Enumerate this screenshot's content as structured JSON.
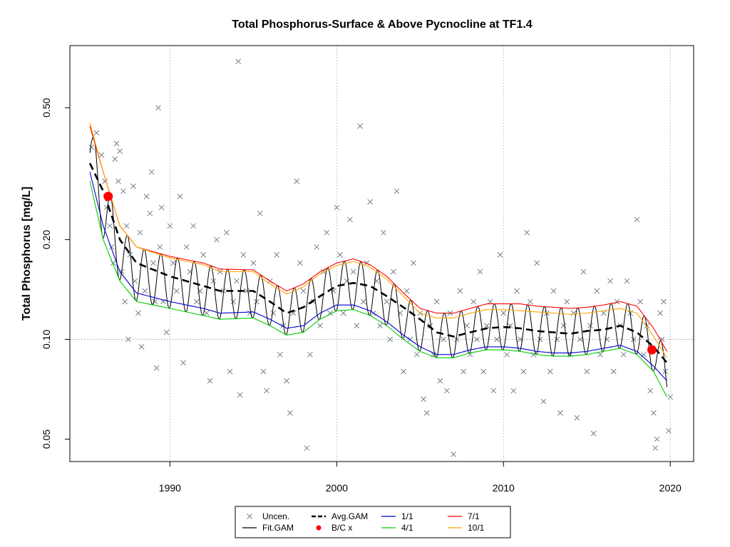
{
  "chart_data": {
    "type": "line",
    "title": "Total Phosphorus-Surface & Above Pycnocline at TF1.4",
    "xlabel": "",
    "ylabel": "Total Phosphorus [mg/L]",
    "y_scale": "log",
    "xlim": [
      1984,
      2021.4
    ],
    "ylim": [
      0.0428,
      0.77
    ],
    "x_ticks": [
      1990,
      2000,
      2010,
      2020
    ],
    "y_ticks": [
      0.05,
      0.1,
      0.2,
      0.5
    ],
    "y_tick_labels": [
      "0.05",
      "0.10",
      "0.20",
      "0.50"
    ],
    "reference_line_y": 0.1,
    "grid": true,
    "legend_position": "bottom",
    "legend": [
      {
        "label": "Uncen.",
        "symbol": "x",
        "color": "#708090"
      },
      {
        "label": "Avg.GAM",
        "symbol": "dashed-line",
        "color": "#000000"
      },
      {
        "label": "1/1",
        "symbol": "line",
        "color": "#0000cd"
      },
      {
        "label": "7/1",
        "symbol": "line",
        "color": "#ff0000"
      },
      {
        "label": "Fit.GAM",
        "symbol": "line",
        "color": "#000000"
      },
      {
        "label": "B/C x",
        "symbol": "dot",
        "color": "#ff0000"
      },
      {
        "label": "4/1",
        "symbol": "line",
        "color": "#00cd00"
      },
      {
        "label": "10/1",
        "symbol": "line",
        "color": "#ffa500"
      }
    ],
    "series": [
      {
        "name": "Avg.GAM",
        "color": "#000000",
        "style": "dashed",
        "x": [
          1985.2,
          1986,
          1987,
          1988,
          1990,
          1992,
          1993,
          1995,
          1996,
          1997,
          1998,
          1999,
          2000,
          2001,
          2002,
          2003,
          2004,
          2005,
          2006,
          2007,
          2008,
          2009,
          2010,
          2011,
          2012,
          2013,
          2014,
          2015,
          2016,
          2017,
          2018,
          2019,
          2019.8
        ],
        "y": [
          0.34,
          0.28,
          0.2,
          0.17,
          0.155,
          0.145,
          0.14,
          0.14,
          0.13,
          0.12,
          0.125,
          0.135,
          0.145,
          0.148,
          0.145,
          0.135,
          0.125,
          0.115,
          0.105,
          0.102,
          0.105,
          0.108,
          0.109,
          0.108,
          0.106,
          0.105,
          0.104,
          0.106,
          0.107,
          0.11,
          0.105,
          0.095,
          0.085
        ]
      },
      {
        "name": "1/1",
        "color": "#0000cd",
        "style": "solid",
        "x": [
          1985.2,
          1986,
          1987,
          1988,
          1990,
          1992,
          1993,
          1995,
          1996,
          1997,
          1998,
          1999,
          2000,
          2001,
          2002,
          2003,
          2004,
          2005,
          2006,
          2007,
          2008,
          2009,
          2010,
          2011,
          2012,
          2013,
          2014,
          2015,
          2016,
          2017,
          2018,
          2019,
          2019.8
        ],
        "y": [
          0.32,
          0.22,
          0.16,
          0.138,
          0.13,
          0.124,
          0.12,
          0.121,
          0.115,
          0.108,
          0.11,
          0.12,
          0.127,
          0.127,
          0.122,
          0.113,
          0.103,
          0.095,
          0.09,
          0.09,
          0.093,
          0.095,
          0.095,
          0.094,
          0.092,
          0.091,
          0.091,
          0.092,
          0.094,
          0.096,
          0.092,
          0.083,
          0.075
        ]
      },
      {
        "name": "4/1",
        "color": "#00cd00",
        "style": "solid",
        "x": [
          1985.2,
          1986,
          1987,
          1988,
          1990,
          1992,
          1993,
          1995,
          1996,
          1997,
          1998,
          1999,
          2000,
          2001,
          2002,
          2003,
          2004,
          2005,
          2006,
          2007,
          2008,
          2009,
          2010,
          2011,
          2012,
          2013,
          2014,
          2015,
          2016,
          2017,
          2018,
          2019,
          2019.8
        ],
        "y": [
          0.3,
          0.2,
          0.15,
          0.13,
          0.124,
          0.118,
          0.115,
          0.116,
          0.11,
          0.103,
          0.105,
          0.115,
          0.122,
          0.123,
          0.118,
          0.11,
          0.1,
          0.092,
          0.088,
          0.088,
          0.091,
          0.093,
          0.093,
          0.092,
          0.09,
          0.089,
          0.089,
          0.09,
          0.092,
          0.094,
          0.09,
          0.08,
          0.067
        ]
      },
      {
        "name": "7/1",
        "color": "#ff0000",
        "style": "solid",
        "x": [
          1985.2,
          1986,
          1987,
          1988,
          1990,
          1992,
          1993,
          1995,
          1996,
          1997,
          1998,
          1999,
          2000,
          2001,
          2002,
          2003,
          2004,
          2005,
          2006,
          2007,
          2008,
          2009,
          2010,
          2011,
          2012,
          2013,
          2014,
          2015,
          2016,
          2017,
          2018,
          2019,
          2019.8
        ],
        "y": [
          0.44,
          0.32,
          0.22,
          0.19,
          0.178,
          0.17,
          0.163,
          0.162,
          0.15,
          0.14,
          0.147,
          0.16,
          0.17,
          0.175,
          0.168,
          0.155,
          0.138,
          0.124,
          0.12,
          0.12,
          0.124,
          0.128,
          0.128,
          0.128,
          0.126,
          0.125,
          0.124,
          0.125,
          0.127,
          0.13,
          0.126,
          0.108,
          0.092
        ]
      },
      {
        "name": "10/1",
        "color": "#ffa500",
        "style": "solid",
        "x": [
          1985.2,
          1986,
          1987,
          1988,
          1990,
          1992,
          1993,
          1995,
          1996,
          1997,
          1998,
          1999,
          2000,
          2001,
          2002,
          2003,
          2004,
          2005,
          2006,
          2007,
          2008,
          2009,
          2010,
          2011,
          2012,
          2013,
          2014,
          2015,
          2016,
          2017,
          2018,
          2019,
          2019.8
        ],
        "y": [
          0.45,
          0.32,
          0.22,
          0.19,
          0.176,
          0.168,
          0.16,
          0.16,
          0.147,
          0.137,
          0.144,
          0.158,
          0.167,
          0.172,
          0.165,
          0.152,
          0.135,
          0.12,
          0.116,
          0.116,
          0.12,
          0.123,
          0.123,
          0.122,
          0.121,
          0.12,
          0.119,
          0.12,
          0.122,
          0.124,
          0.12,
          0.102,
          0.088
        ]
      }
    ],
    "bc_points": [
      {
        "x": 1986.3,
        "y": 0.27
      },
      {
        "x": 2018.9,
        "y": 0.093
      }
    ],
    "uncensored_points": [
      [
        1985.3,
        0.38
      ],
      [
        1985.6,
        0.42
      ],
      [
        1985.9,
        0.36
      ],
      [
        1986.1,
        0.3
      ],
      [
        1986.2,
        0.25
      ],
      [
        1986.4,
        0.22
      ],
      [
        1986.5,
        0.19
      ],
      [
        1986.6,
        0.17
      ],
      [
        1986.7,
        0.35
      ],
      [
        1986.8,
        0.39
      ],
      [
        1986.9,
        0.3
      ],
      [
        1987.0,
        0.37
      ],
      [
        1987.1,
        0.16
      ],
      [
        1987.2,
        0.28
      ],
      [
        1987.3,
        0.13
      ],
      [
        1987.4,
        0.22
      ],
      [
        1987.5,
        0.1
      ],
      [
        1987.6,
        0.18
      ],
      [
        1987.8,
        0.29
      ],
      [
        1987.9,
        0.15
      ],
      [
        1988.1,
        0.12
      ],
      [
        1988.2,
        0.21
      ],
      [
        1988.3,
        0.095
      ],
      [
        1988.5,
        0.14
      ],
      [
        1988.6,
        0.27
      ],
      [
        1988.8,
        0.24
      ],
      [
        1988.9,
        0.32
      ],
      [
        1989.0,
        0.17
      ],
      [
        1989.1,
        0.13
      ],
      [
        1989.2,
        0.082
      ],
      [
        1989.3,
        0.5
      ],
      [
        1989.4,
        0.19
      ],
      [
        1989.5,
        0.25
      ],
      [
        1989.6,
        0.13
      ],
      [
        1989.8,
        0.105
      ],
      [
        1990.0,
        0.22
      ],
      [
        1990.2,
        0.17
      ],
      [
        1990.4,
        0.14
      ],
      [
        1990.6,
        0.27
      ],
      [
        1990.8,
        0.085
      ],
      [
        1991.0,
        0.19
      ],
      [
        1991.2,
        0.16
      ],
      [
        1991.4,
        0.22
      ],
      [
        1991.6,
        0.13
      ],
      [
        1991.8,
        0.14
      ],
      [
        1992.0,
        0.18
      ],
      [
        1992.2,
        0.12
      ],
      [
        1992.4,
        0.075
      ],
      [
        1992.6,
        0.15
      ],
      [
        1992.8,
        0.2
      ],
      [
        1993.0,
        0.16
      ],
      [
        1993.2,
        0.14
      ],
      [
        1993.4,
        0.21
      ],
      [
        1993.6,
        0.08
      ],
      [
        1993.8,
        0.13
      ],
      [
        1994.0,
        0.15
      ],
      [
        1994.1,
        0.69
      ],
      [
        1994.2,
        0.068
      ],
      [
        1994.4,
        0.18
      ],
      [
        1994.6,
        0.14
      ],
      [
        1994.8,
        0.12
      ],
      [
        1995.0,
        0.17
      ],
      [
        1995.2,
        0.13
      ],
      [
        1995.4,
        0.24
      ],
      [
        1995.6,
        0.08
      ],
      [
        1995.8,
        0.07
      ],
      [
        1996.0,
        0.15
      ],
      [
        1996.2,
        0.12
      ],
      [
        1996.4,
        0.18
      ],
      [
        1996.6,
        0.09
      ],
      [
        1996.8,
        0.11
      ],
      [
        1997.0,
        0.075
      ],
      [
        1997.2,
        0.06
      ],
      [
        1997.4,
        0.12
      ],
      [
        1997.6,
        0.3
      ],
      [
        1997.8,
        0.17
      ],
      [
        1998.0,
        0.14
      ],
      [
        1998.2,
        0.047
      ],
      [
        1998.4,
        0.09
      ],
      [
        1998.6,
        0.13
      ],
      [
        1998.8,
        0.19
      ],
      [
        1999.0,
        0.11
      ],
      [
        1999.2,
        0.16
      ],
      [
        1999.4,
        0.21
      ],
      [
        1999.6,
        0.12
      ],
      [
        1999.8,
        0.14
      ],
      [
        2000.0,
        0.25
      ],
      [
        2000.2,
        0.18
      ],
      [
        2000.4,
        0.12
      ],
      [
        2000.6,
        0.15
      ],
      [
        2000.8,
        0.23
      ],
      [
        2001.0,
        0.16
      ],
      [
        2001.2,
        0.11
      ],
      [
        2001.4,
        0.44
      ],
      [
        2001.6,
        0.13
      ],
      [
        2001.8,
        0.17
      ],
      [
        2002.0,
        0.26
      ],
      [
        2002.2,
        0.12
      ],
      [
        2002.4,
        0.15
      ],
      [
        2002.6,
        0.11
      ],
      [
        2002.8,
        0.21
      ],
      [
        2003.0,
        0.13
      ],
      [
        2003.2,
        0.1
      ],
      [
        2003.4,
        0.16
      ],
      [
        2003.6,
        0.28
      ],
      [
        2003.8,
        0.12
      ],
      [
        2004.0,
        0.08
      ],
      [
        2004.2,
        0.14
      ],
      [
        2004.4,
        0.1
      ],
      [
        2004.6,
        0.17
      ],
      [
        2004.8,
        0.09
      ],
      [
        2005.0,
        0.12
      ],
      [
        2005.2,
        0.066
      ],
      [
        2005.4,
        0.06
      ],
      [
        2005.6,
        0.11
      ],
      [
        2005.8,
        0.09
      ],
      [
        2006.0,
        0.13
      ],
      [
        2006.2,
        0.075
      ],
      [
        2006.4,
        0.1
      ],
      [
        2006.6,
        0.07
      ],
      [
        2006.8,
        0.12
      ],
      [
        2007.0,
        0.045
      ],
      [
        2007.2,
        0.1
      ],
      [
        2007.4,
        0.14
      ],
      [
        2007.6,
        0.08
      ],
      [
        2007.8,
        0.11
      ],
      [
        2008.0,
        0.09
      ],
      [
        2008.2,
        0.13
      ],
      [
        2008.4,
        0.1
      ],
      [
        2008.6,
        0.16
      ],
      [
        2008.8,
        0.08
      ],
      [
        2009.0,
        0.11
      ],
      [
        2009.2,
        0.13
      ],
      [
        2009.4,
        0.07
      ],
      [
        2009.6,
        0.1
      ],
      [
        2009.8,
        0.18
      ],
      [
        2010.0,
        0.12
      ],
      [
        2010.2,
        0.09
      ],
      [
        2010.4,
        0.11
      ],
      [
        2010.6,
        0.07
      ],
      [
        2010.8,
        0.14
      ],
      [
        2011.0,
        0.1
      ],
      [
        2011.2,
        0.08
      ],
      [
        2011.4,
        0.21
      ],
      [
        2011.6,
        0.13
      ],
      [
        2011.8,
        0.09
      ],
      [
        2012.0,
        0.17
      ],
      [
        2012.2,
        0.1
      ],
      [
        2012.4,
        0.065
      ],
      [
        2012.6,
        0.12
      ],
      [
        2012.8,
        0.08
      ],
      [
        2013.0,
        0.14
      ],
      [
        2013.2,
        0.1
      ],
      [
        2013.4,
        0.06
      ],
      [
        2013.6,
        0.11
      ],
      [
        2013.8,
        0.13
      ],
      [
        2014.0,
        0.09
      ],
      [
        2014.2,
        0.12
      ],
      [
        2014.4,
        0.058
      ],
      [
        2014.6,
        0.1
      ],
      [
        2014.8,
        0.16
      ],
      [
        2015.0,
        0.08
      ],
      [
        2015.2,
        0.11
      ],
      [
        2015.4,
        0.052
      ],
      [
        2015.6,
        0.14
      ],
      [
        2015.8,
        0.09
      ],
      [
        2016.0,
        0.12
      ],
      [
        2016.2,
        0.1
      ],
      [
        2016.4,
        0.15
      ],
      [
        2016.6,
        0.08
      ],
      [
        2016.8,
        0.13
      ],
      [
        2017.0,
        0.11
      ],
      [
        2017.2,
        0.09
      ],
      [
        2017.4,
        0.15
      ],
      [
        2017.6,
        0.12
      ],
      [
        2017.8,
        0.1
      ],
      [
        2018.0,
        0.23
      ],
      [
        2018.2,
        0.13
      ],
      [
        2018.4,
        0.09
      ],
      [
        2018.6,
        0.11
      ],
      [
        2018.8,
        0.07
      ],
      [
        2019.0,
        0.06
      ],
      [
        2019.1,
        0.047
      ],
      [
        2019.2,
        0.05
      ],
      [
        2019.4,
        0.12
      ],
      [
        2019.5,
        0.1
      ],
      [
        2019.6,
        0.13
      ],
      [
        2019.7,
        0.08
      ],
      [
        2019.9,
        0.053
      ],
      [
        2020.0,
        0.067
      ]
    ]
  }
}
